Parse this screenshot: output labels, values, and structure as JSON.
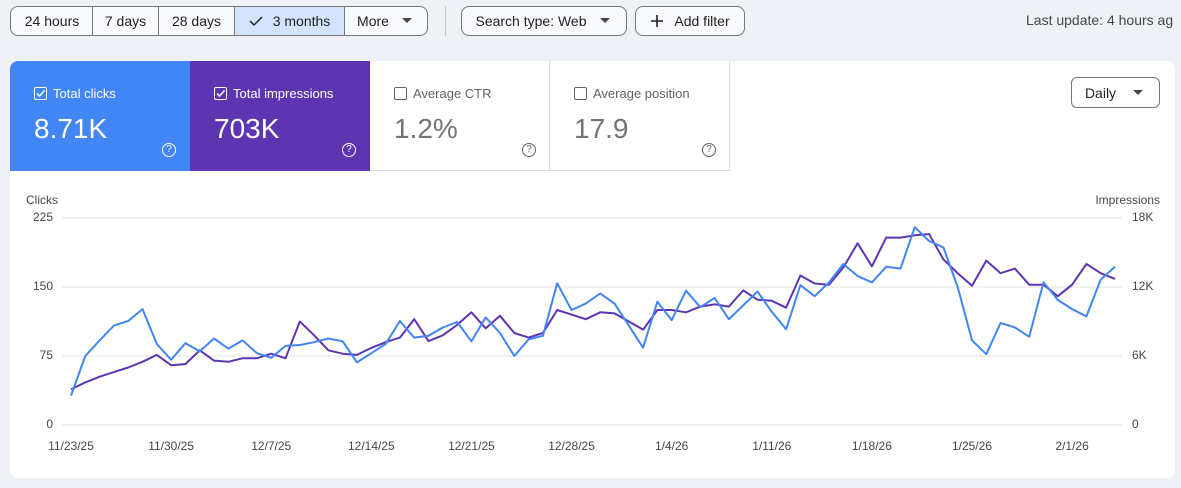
{
  "toolbar": {
    "ranges": [
      "24 hours",
      "7 days",
      "28 days",
      "3 months",
      "More"
    ],
    "selected_range": "3 months",
    "search_type": "Search type: Web",
    "add_filter": "Add filter",
    "last_update": "Last update: 4 hours ag"
  },
  "cards": [
    {
      "label": "Total clicks",
      "value": "8.71K",
      "checked": true,
      "color": "#4285f4"
    },
    {
      "label": "Total impressions",
      "value": "703K",
      "checked": true,
      "color": "#5e35b1"
    },
    {
      "label": "Average CTR",
      "value": "1.2%",
      "checked": false,
      "color": "#ffffff"
    },
    {
      "label": "Average position",
      "value": "17.9",
      "checked": false,
      "color": "#ffffff"
    }
  ],
  "granularity": "Daily",
  "chart_data": {
    "type": "line",
    "categories": [
      "11/23/25",
      null,
      null,
      null,
      null,
      null,
      null,
      "11/30/25",
      null,
      null,
      null,
      null,
      null,
      null,
      "12/7/25",
      null,
      null,
      null,
      null,
      null,
      null,
      "12/14/25",
      null,
      null,
      null,
      null,
      null,
      null,
      "12/21/25",
      null,
      null,
      null,
      null,
      null,
      null,
      "12/28/25",
      null,
      null,
      null,
      null,
      null,
      null,
      "1/4/26",
      null,
      null,
      null,
      null,
      null,
      null,
      "1/11/26",
      null,
      null,
      null,
      null,
      null,
      null,
      "1/18/26",
      null,
      null,
      null,
      null,
      null,
      null,
      "1/25/26",
      null,
      null,
      null,
      null,
      null,
      null,
      "2/1/26",
      null,
      null,
      null
    ],
    "series": [
      {
        "name": "Clicks",
        "color": "#4285f4",
        "axis": "y",
        "values": [
          32,
          75,
          92,
          108,
          113,
          126,
          88,
          71,
          89,
          80,
          94,
          83,
          92,
          78,
          73,
          86,
          87,
          90,
          94,
          91,
          68,
          78,
          88,
          113,
          95,
          97,
          106,
          112,
          91,
          117,
          100,
          75,
          93,
          97,
          154,
          125,
          132,
          143,
          132,
          108,
          84,
          134,
          114,
          146,
          128,
          138,
          115,
          130,
          145,
          123,
          104,
          152,
          140,
          155,
          175,
          162,
          155,
          172,
          170,
          215,
          200,
          193,
          150,
          92,
          77,
          111,
          106,
          96,
          155,
          136,
          126,
          118,
          158,
          172
        ]
      },
      {
        "name": "Impressions",
        "color": "#5e35b1",
        "axis": "y2",
        "values": [
          3100,
          3700,
          4200,
          4600,
          5000,
          5500,
          6100,
          5200,
          5300,
          6500,
          5600,
          5500,
          5800,
          5800,
          6200,
          5800,
          9000,
          7800,
          6500,
          6200,
          6100,
          6700,
          7200,
          7600,
          9200,
          7300,
          7800,
          8700,
          9800,
          8400,
          9500,
          8000,
          7600,
          8000,
          10000,
          9600,
          9200,
          9800,
          9700,
          9000,
          8300,
          10000,
          10000,
          9800,
          10300,
          10500,
          10300,
          11700,
          10900,
          10800,
          10200,
          13000,
          12300,
          12200,
          13700,
          15800,
          13800,
          16300,
          16300,
          16500,
          16600,
          14400,
          13200,
          12100,
          14300,
          13200,
          13600,
          12200,
          12200,
          11200,
          12200,
          14000,
          13200,
          12700
        ]
      }
    ],
    "ylim": [
      0,
      225
    ],
    "yticks": [
      0,
      75,
      150,
      225
    ],
    "y2lim": [
      0,
      18000
    ],
    "y2ticks": [
      0,
      {
        "value": 6000,
        "label": "6K"
      },
      {
        "value": 12000,
        "label": "12K"
      },
      {
        "value": 18000,
        "label": "18K"
      }
    ],
    "grid": true
  }
}
